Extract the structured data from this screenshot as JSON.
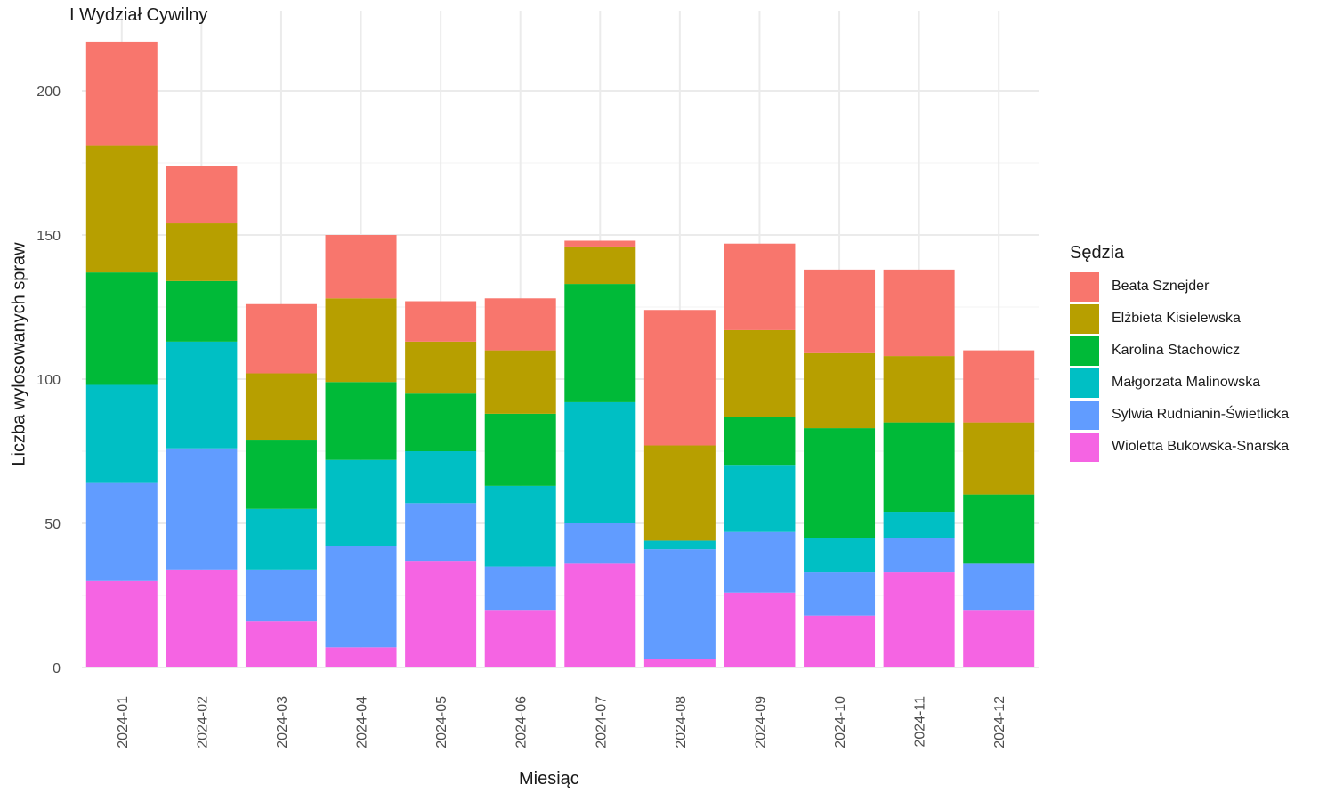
{
  "chart_data": {
    "type": "bar",
    "stacked": true,
    "title": "I Wydział Cywilny",
    "xlabel": "Miesiąc",
    "ylabel": "Liczba wylosowanych spraw",
    "ylim": [
      0,
      220
    ],
    "yticks": [
      0,
      50,
      100,
      150,
      200
    ],
    "grid": true,
    "legend_title": "Sędzia",
    "legend_position": "right",
    "categories": [
      "2024-01",
      "2024-02",
      "2024-03",
      "2024-04",
      "2024-05",
      "2024-06",
      "2024-07",
      "2024-08",
      "2024-09",
      "2024-10",
      "2024-11",
      "2024-12"
    ],
    "series": [
      {
        "name": "Wioletta Bukowska-Snarska",
        "color": "#F564E3",
        "values": [
          30,
          34,
          16,
          7,
          37,
          20,
          36,
          3,
          26,
          18,
          33,
          20
        ]
      },
      {
        "name": "Sylwia Rudnianin-Świetlicka",
        "color": "#619CFF",
        "values": [
          34,
          42,
          18,
          35,
          20,
          15,
          14,
          38,
          21,
          15,
          12,
          16
        ]
      },
      {
        "name": "Małgorzata Malinowska",
        "color": "#00BFC4",
        "values": [
          34,
          37,
          21,
          30,
          18,
          28,
          42,
          3,
          23,
          12,
          9,
          0
        ]
      },
      {
        "name": "Karolina Stachowicz",
        "color": "#00BA38",
        "values": [
          39,
          21,
          24,
          27,
          20,
          25,
          41,
          0,
          17,
          38,
          31,
          24
        ]
      },
      {
        "name": "Elżbieta Kisielewska",
        "color": "#B79F00",
        "values": [
          44,
          20,
          23,
          29,
          18,
          22,
          13,
          33,
          30,
          26,
          23,
          25
        ]
      },
      {
        "name": "Beata Sznejder",
        "color": "#F8766D",
        "values": [
          36,
          20,
          24,
          22,
          14,
          18,
          2,
          47,
          30,
          29,
          30,
          25
        ]
      }
    ]
  }
}
